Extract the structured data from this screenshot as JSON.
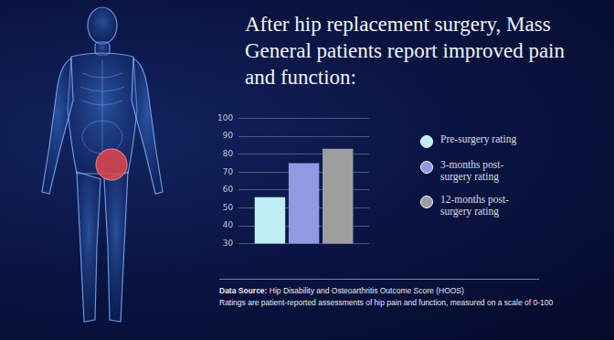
{
  "chart_data": {
    "type": "bar",
    "title": "After hip replacement surgery, Mass General patients report improved pain and function:",
    "categories": [
      null
    ],
    "series": [
      {
        "name": "Pre-surgery rating",
        "color": "#bfeef5",
        "values": [
          56
        ]
      },
      {
        "name": "3-months post-surgery rating",
        "color": "#8f9ae0",
        "values": [
          75
        ]
      },
      {
        "name": "12-months post-surgery rating",
        "color": "#9e9e9e",
        "values": [
          83
        ]
      }
    ],
    "ylim": [
      30,
      100
    ],
    "yticks": [
      30,
      40,
      50,
      60,
      70,
      80,
      90,
      100
    ],
    "grid": true,
    "legend": "right",
    "tick_labels": "y",
    "source_label": "Data Source:",
    "source": "Hip Disability and Osteoarthritis Outcome Score (HOOS)",
    "note": "Ratings are patient-reported assessments of hip pain and function, measured on a scale of 0-100"
  }
}
